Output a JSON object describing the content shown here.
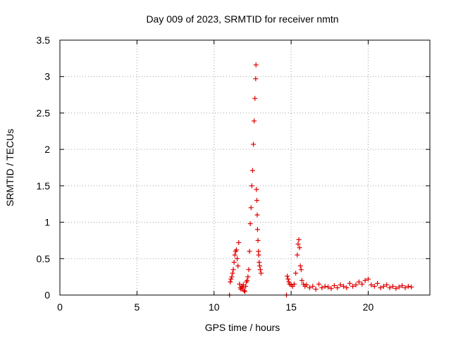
{
  "chart_data": {
    "type": "scatter",
    "title": "Day 009 of 2023, SRMTID for receiver nmtn",
    "xlabel": "GPS time / hours",
    "ylabel": "SRMTID / TECUs",
    "xlim": [
      0,
      24
    ],
    "ylim": [
      0,
      3.5
    ],
    "xticks": [
      0,
      5,
      10,
      15,
      20
    ],
    "xtick_labels": [
      "0",
      "5",
      "10",
      "15",
      "20"
    ],
    "yticks": [
      0,
      0.5,
      1,
      1.5,
      2,
      2.5,
      3,
      3.5
    ],
    "ytick_labels": [
      "0",
      "0.5",
      "1",
      "1.5",
      "2",
      "2.5",
      "3",
      "3.5"
    ],
    "grid": true,
    "marker": "+",
    "series": [
      {
        "name": "SRMTID",
        "color": "#e00000",
        "x": [
          11.0,
          11.05,
          11.1,
          11.15,
          11.2,
          11.25,
          11.3,
          11.35,
          11.4,
          11.45,
          11.5,
          11.55,
          11.6,
          11.65,
          11.7,
          11.75,
          11.8,
          11.85,
          11.9,
          11.95,
          12.0,
          12.05,
          12.1,
          12.15,
          12.2,
          12.25,
          12.3,
          12.35,
          12.4,
          12.45,
          12.5,
          12.55,
          12.6,
          12.65,
          12.7,
          12.72,
          12.75,
          12.78,
          12.8,
          12.82,
          12.85,
          12.88,
          12.9,
          12.93,
          12.96,
          13.0,
          13.05,
          14.7,
          14.75,
          14.8,
          14.85,
          14.9,
          15.0,
          15.1,
          15.2,
          15.3,
          15.4,
          15.45,
          15.5,
          15.55,
          15.6,
          15.65,
          15.7,
          15.8,
          15.9,
          16.0,
          16.2,
          16.4,
          16.6,
          16.8,
          17.0,
          17.2,
          17.4,
          17.6,
          17.8,
          18.0,
          18.2,
          18.4,
          18.6,
          18.8,
          19.0,
          19.2,
          19.4,
          19.6,
          19.8,
          20.0,
          20.2,
          20.4,
          20.6,
          20.8,
          21.0,
          21.2,
          21.4,
          21.6,
          21.8,
          22.0,
          22.2,
          22.4,
          22.6,
          22.8
        ],
        "y": [
          0.0,
          0.18,
          0.22,
          0.25,
          0.3,
          0.35,
          0.45,
          0.55,
          0.6,
          0.62,
          0.5,
          0.4,
          0.72,
          0.15,
          0.1,
          0.08,
          0.12,
          0.1,
          0.14,
          0.06,
          0.05,
          0.12,
          0.18,
          0.2,
          0.25,
          0.35,
          0.6,
          0.98,
          1.2,
          1.5,
          1.71,
          2.07,
          2.39,
          2.7,
          2.97,
          3.16,
          1.45,
          1.3,
          1.1,
          0.9,
          0.75,
          0.6,
          0.55,
          0.45,
          0.4,
          0.35,
          0.3,
          0.0,
          0.26,
          0.22,
          0.18,
          0.15,
          0.14,
          0.12,
          0.15,
          0.3,
          0.55,
          0.7,
          0.76,
          0.65,
          0.4,
          0.35,
          0.2,
          0.15,
          0.12,
          0.14,
          0.1,
          0.12,
          0.08,
          0.15,
          0.1,
          0.12,
          0.11,
          0.09,
          0.13,
          0.1,
          0.14,
          0.12,
          0.1,
          0.16,
          0.12,
          0.14,
          0.18,
          0.15,
          0.2,
          0.22,
          0.14,
          0.12,
          0.16,
          0.1,
          0.12,
          0.14,
          0.1,
          0.12,
          0.09,
          0.11,
          0.13,
          0.1,
          0.12,
          0.11
        ]
      }
    ]
  }
}
